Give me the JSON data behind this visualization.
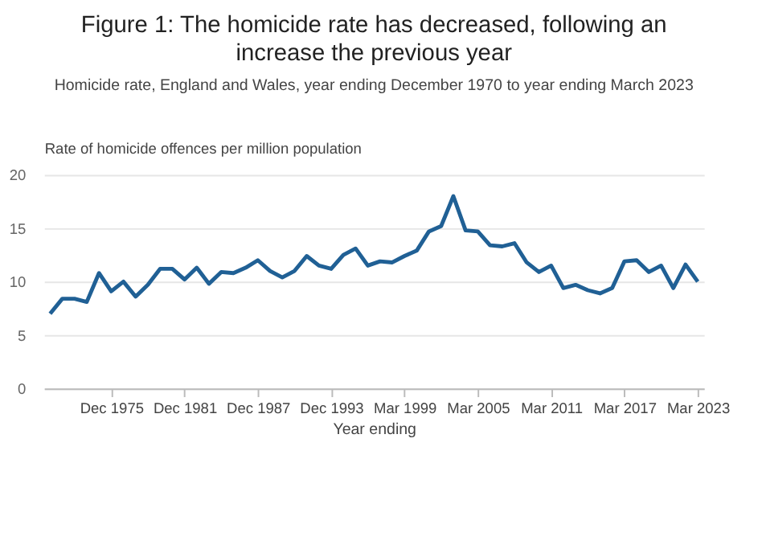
{
  "chart_data": {
    "type": "line",
    "title": "Figure 1: The homicide rate has decreased, following an increase the previous year",
    "subtitle": "Homicide rate, England and Wales, year ending December 1970 to year ending March 2023",
    "ylabel": "Rate of homicide offences per million population",
    "xlabel": "Year ending",
    "categories": [
      null,
      null,
      null,
      null,
      null,
      "Dec 1975",
      null,
      null,
      null,
      null,
      null,
      "Dec 1981",
      null,
      null,
      null,
      null,
      null,
      "Dec 1987",
      null,
      null,
      null,
      null,
      null,
      "Dec 1993",
      null,
      null,
      null,
      null,
      null,
      "Mar 1999",
      null,
      null,
      null,
      null,
      null,
      "Mar 2005",
      null,
      null,
      null,
      null,
      null,
      "Mar 2011",
      null,
      null,
      null,
      null,
      null,
      "Mar 2017",
      null,
      null,
      null,
      null,
      null,
      "Mar 2023"
    ],
    "series": [
      {
        "color": "#206095",
        "values": [
          7.0,
          8.4,
          8.4,
          8.1,
          10.8,
          9.1,
          10.0,
          8.6,
          9.7,
          11.2,
          11.2,
          10.2,
          11.3,
          9.8,
          10.9,
          10.8,
          11.3,
          12.0,
          11.0,
          10.4,
          11.0,
          12.4,
          11.5,
          11.2,
          12.5,
          13.1,
          11.5,
          11.9,
          11.8,
          12.4,
          12.9,
          14.7,
          15.2,
          18.0,
          14.8,
          14.7,
          13.4,
          13.3,
          13.6,
          11.8,
          10.9,
          11.5,
          9.4,
          9.7,
          9.2,
          8.9,
          9.4,
          11.9,
          12.0,
          10.9,
          11.5,
          9.4,
          11.6,
          10.0
        ]
      }
    ],
    "ylim": [
      0,
      20
    ],
    "yticks": [
      0,
      5,
      10,
      15,
      20
    ],
    "grid": "y",
    "legend": false,
    "marker": "none",
    "line_style": "solid"
  }
}
